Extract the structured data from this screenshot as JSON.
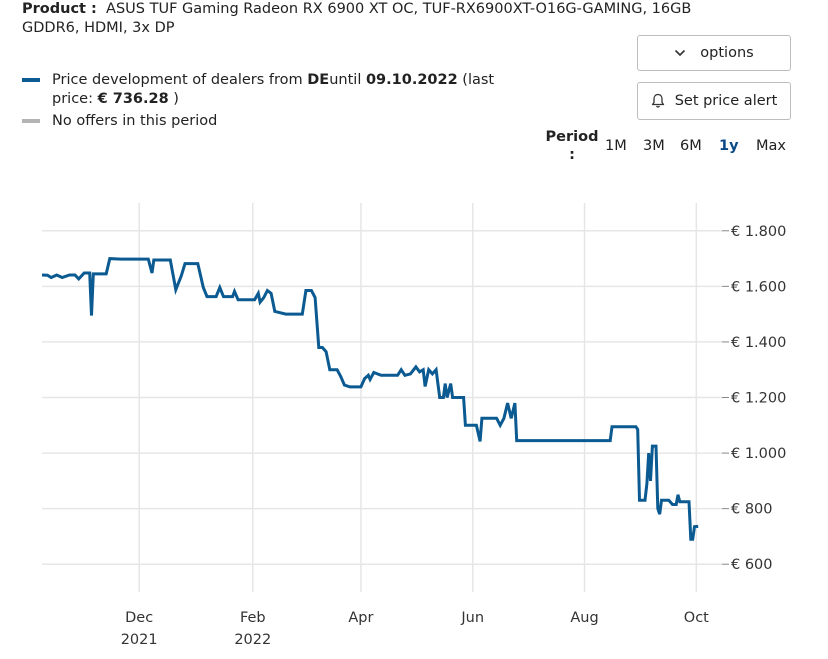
{
  "product": {
    "label": "Product :",
    "name": "ASUS TUF Gaming Radeon RX 6900 XT OC, TUF-RX6900XT-O16G-GAMING, 16GB GDDR6, HDMI, 3x DP"
  },
  "legend": {
    "line1_prefix": "Price development of dealers from ",
    "line1_country": "DE",
    "line1_until": "until ",
    "line1_date": "09.10.2022",
    "line1_suffix_open": " (last price: ",
    "line1_price": "€ 736.28",
    "line1_suffix_close": " )",
    "line2": "No offers in this period",
    "color_main": "#0b5a91",
    "color_gray": "#b4b4b4"
  },
  "buttons": {
    "options": "options",
    "price_alert": "Set price alert"
  },
  "icons": {
    "options": "chevron-down-icon",
    "price_alert": "bell-icon"
  },
  "period": {
    "label": "Period :",
    "options": [
      "1M",
      "3M",
      "6M",
      "1y",
      "Max"
    ],
    "active": "1y"
  },
  "chart_data": {
    "type": "line",
    "title": "",
    "xlabel": "",
    "ylabel": "",
    "y_axis_position": "right",
    "grid": true,
    "ylim": [
      500,
      1900
    ],
    "yticks": [
      600,
      800,
      1000,
      1200,
      1400,
      1600,
      1800
    ],
    "ytick_labels": [
      "€ 600",
      "€ 800",
      "€ 1.000",
      "€ 1.200",
      "€ 1.400",
      "€ 1.600",
      "€ 1.800"
    ],
    "xlim": [
      "2021-10-09",
      "2022-10-15"
    ],
    "xticks": [
      {
        "date": "2021-12-01",
        "label": "Dec",
        "year": "2021"
      },
      {
        "date": "2022-02-01",
        "label": "Feb",
        "year": "2022"
      },
      {
        "date": "2022-04-01",
        "label": "Apr",
        "year": ""
      },
      {
        "date": "2022-06-01",
        "label": "Jun",
        "year": ""
      },
      {
        "date": "2022-08-01",
        "label": "Aug",
        "year": ""
      },
      {
        "date": "2022-10-01",
        "label": "Oct",
        "year": ""
      }
    ],
    "series": [
      {
        "name": "",
        "color": "#0b5a91",
        "points": [
          [
            "2021-10-09",
            1641
          ],
          [
            "2021-10-12",
            1640
          ],
          [
            "2021-10-14",
            1632
          ],
          [
            "2021-10-17",
            1641
          ],
          [
            "2021-10-20",
            1632
          ],
          [
            "2021-10-24",
            1641
          ],
          [
            "2021-10-27",
            1641
          ],
          [
            "2021-10-29",
            1627
          ],
          [
            "2021-11-01",
            1648
          ],
          [
            "2021-11-04",
            1648
          ],
          [
            "2021-11-05",
            1495
          ],
          [
            "2021-11-06",
            1645
          ],
          [
            "2021-11-13",
            1645
          ],
          [
            "2021-11-15",
            1700
          ],
          [
            "2021-11-21",
            1698
          ],
          [
            "2021-11-28",
            1698
          ],
          [
            "2021-12-03",
            1698
          ],
          [
            "2021-12-06",
            1698
          ],
          [
            "2021-12-08",
            1648
          ],
          [
            "2021-12-09",
            1695
          ],
          [
            "2021-12-18",
            1695
          ],
          [
            "2021-12-21",
            1588
          ],
          [
            "2021-12-24",
            1638
          ],
          [
            "2021-12-26",
            1682
          ],
          [
            "2022-01-02",
            1682
          ],
          [
            "2022-01-05",
            1596
          ],
          [
            "2022-01-07",
            1563
          ],
          [
            "2022-01-12",
            1563
          ],
          [
            "2022-01-14",
            1596
          ],
          [
            "2022-01-16",
            1563
          ],
          [
            "2022-01-21",
            1563
          ],
          [
            "2022-01-22",
            1582
          ],
          [
            "2022-01-24",
            1552
          ],
          [
            "2022-02-02",
            1552
          ],
          [
            "2022-02-04",
            1575
          ],
          [
            "2022-02-05",
            1543
          ],
          [
            "2022-02-07",
            1560
          ],
          [
            "2022-02-09",
            1585
          ],
          [
            "2022-02-11",
            1575
          ],
          [
            "2022-02-13",
            1510
          ],
          [
            "2022-02-19",
            1500
          ],
          [
            "2022-02-24",
            1500
          ],
          [
            "2022-02-28",
            1500
          ],
          [
            "2022-03-02",
            1585
          ],
          [
            "2022-03-05",
            1585
          ],
          [
            "2022-03-07",
            1560
          ],
          [
            "2022-03-09",
            1380
          ],
          [
            "2022-03-11",
            1380
          ],
          [
            "2022-03-13",
            1365
          ],
          [
            "2022-03-15",
            1300
          ],
          [
            "2022-03-19",
            1300
          ],
          [
            "2022-03-21",
            1275
          ],
          [
            "2022-03-23",
            1245
          ],
          [
            "2022-03-26",
            1238
          ],
          [
            "2022-03-29",
            1238
          ],
          [
            "2022-04-01",
            1238
          ],
          [
            "2022-04-03",
            1268
          ],
          [
            "2022-04-05",
            1280
          ],
          [
            "2022-04-06",
            1265
          ],
          [
            "2022-04-08",
            1290
          ],
          [
            "2022-04-12",
            1280
          ],
          [
            "2022-04-17",
            1280
          ],
          [
            "2022-04-21",
            1280
          ],
          [
            "2022-04-23",
            1300
          ],
          [
            "2022-04-25",
            1280
          ],
          [
            "2022-04-28",
            1285
          ],
          [
            "2022-05-01",
            1310
          ],
          [
            "2022-05-03",
            1292
          ],
          [
            "2022-05-05",
            1300
          ],
          [
            "2022-05-06",
            1240
          ],
          [
            "2022-05-08",
            1300
          ],
          [
            "2022-05-10",
            1285
          ],
          [
            "2022-05-12",
            1300
          ],
          [
            "2022-05-13",
            1250
          ],
          [
            "2022-05-14",
            1200
          ],
          [
            "2022-05-16",
            1200
          ],
          [
            "2022-05-17",
            1250
          ],
          [
            "2022-05-18",
            1200
          ],
          [
            "2022-05-20",
            1250
          ],
          [
            "2022-05-21",
            1200
          ],
          [
            "2022-05-27",
            1200
          ],
          [
            "2022-05-28",
            1100
          ],
          [
            "2022-06-03",
            1100
          ],
          [
            "2022-06-05",
            1042
          ],
          [
            "2022-06-06",
            1125
          ],
          [
            "2022-06-10",
            1125
          ],
          [
            "2022-06-14",
            1125
          ],
          [
            "2022-06-16",
            1100
          ],
          [
            "2022-06-18",
            1125
          ],
          [
            "2022-06-20",
            1180
          ],
          [
            "2022-06-22",
            1125
          ],
          [
            "2022-06-24",
            1180
          ],
          [
            "2022-06-25",
            1045
          ],
          [
            "2022-07-01",
            1045
          ],
          [
            "2022-07-15",
            1045
          ],
          [
            "2022-08-01",
            1045
          ],
          [
            "2022-08-15",
            1045
          ],
          [
            "2022-08-16",
            1095
          ],
          [
            "2022-08-22",
            1095
          ],
          [
            "2022-08-29",
            1095
          ],
          [
            "2022-08-30",
            1085
          ],
          [
            "2022-08-31",
            830
          ],
          [
            "2022-09-03",
            830
          ],
          [
            "2022-09-04",
            890
          ],
          [
            "2022-09-05",
            1000
          ],
          [
            "2022-09-06",
            900
          ],
          [
            "2022-09-07",
            1025
          ],
          [
            "2022-09-09",
            1025
          ],
          [
            "2022-09-10",
            800
          ],
          [
            "2022-09-11",
            780
          ],
          [
            "2022-09-12",
            830
          ],
          [
            "2022-09-16",
            830
          ],
          [
            "2022-09-18",
            815
          ],
          [
            "2022-09-20",
            815
          ],
          [
            "2022-09-21",
            850
          ],
          [
            "2022-09-22",
            825
          ],
          [
            "2022-09-27",
            825
          ],
          [
            "2022-09-28",
            690
          ],
          [
            "2022-09-29",
            690
          ],
          [
            "2022-09-30",
            735
          ],
          [
            "2022-10-02",
            736
          ]
        ]
      }
    ]
  }
}
